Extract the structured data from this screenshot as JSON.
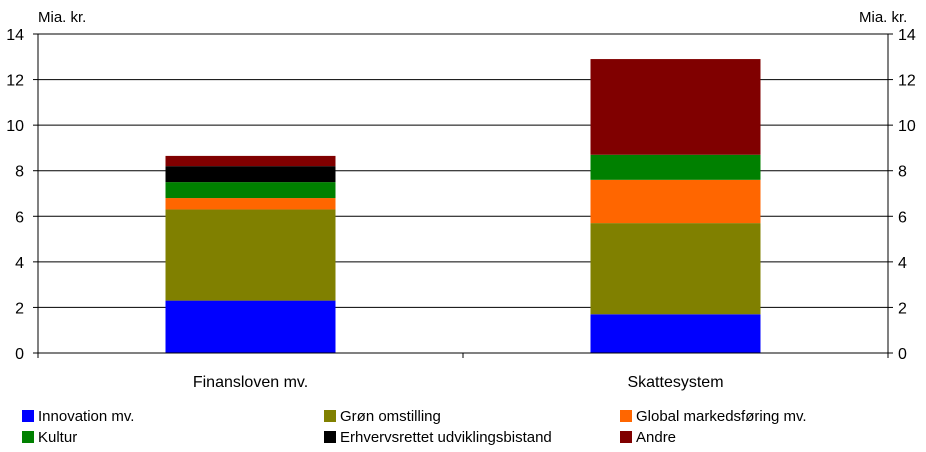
{
  "chart_data": {
    "type": "bar",
    "stacked": true,
    "categories": [
      "Finansloven mv.",
      "Skattesystem"
    ],
    "series": [
      {
        "name": "Innovation mv.",
        "color": "#0000ff",
        "values": [
          2.3,
          1.7
        ]
      },
      {
        "name": "Grøn omstilling",
        "color": "#808000",
        "values": [
          4.0,
          4.0
        ]
      },
      {
        "name": "Global markedsføring mv.",
        "color": "#ff6600",
        "values": [
          0.5,
          1.9
        ]
      },
      {
        "name": "Kultur",
        "color": "#008000",
        "values": [
          0.7,
          1.1
        ]
      },
      {
        "name": "Erhvervsrettet udviklingsbistand",
        "color": "#000000",
        "values": [
          0.7,
          0.0
        ]
      },
      {
        "name": "Andre",
        "color": "#800000",
        "values": [
          0.45,
          4.2
        ]
      }
    ],
    "ylabel_left": "Mia. kr.",
    "ylabel_right": "Mia. kr.",
    "ylim": [
      0,
      14
    ],
    "yticks": [
      "0",
      "2",
      "4",
      "6",
      "8",
      "10",
      "12",
      "14"
    ],
    "grid": true,
    "legend_position": "bottom"
  }
}
